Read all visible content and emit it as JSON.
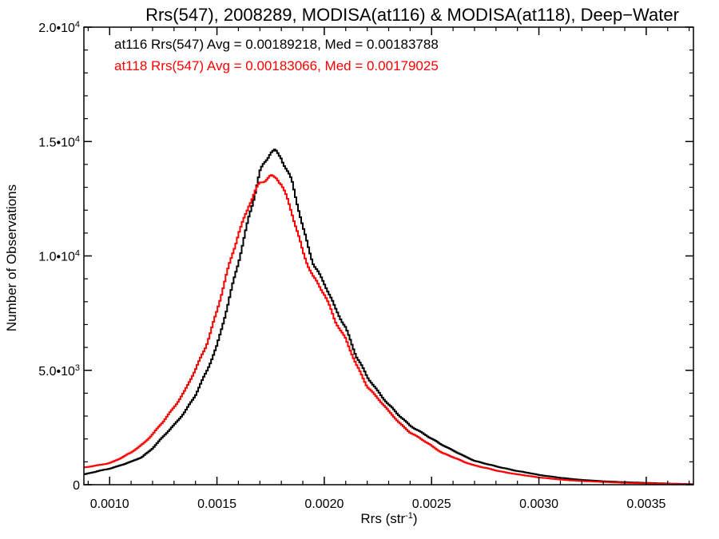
{
  "chart_data": {
    "type": "line",
    "title": "Rrs(547), 2008289, MODISA(at116) & MODISA(at118), Deep−Water",
    "xlabel": "Rrs (str",
    "xlabel_sup": "-1",
    "xlabel_end": ")",
    "ylabel": "Number of Observations",
    "xlim": [
      0.00088,
      0.00372
    ],
    "ylim": [
      0,
      20000
    ],
    "x_ticks": [
      0.001,
      0.0015,
      0.002,
      0.0025,
      0.003,
      0.0035
    ],
    "x_tick_labels": [
      "0.0010",
      "0.0015",
      "0.0020",
      "0.0025",
      "0.0030",
      "0.0035"
    ],
    "y_ticks": [
      0,
      5000,
      10000,
      15000,
      20000
    ],
    "y_tick_labels": [
      {
        "base": "0",
        "exp": ""
      },
      {
        "base": "5.0•",
        "base10": "10",
        "exp": "3"
      },
      {
        "base": "1.0•",
        "base10": "10",
        "exp": "4"
      },
      {
        "base": "1.5•",
        "base10": "10",
        "exp": "4"
      },
      {
        "base": "2.0•",
        "base10": "10",
        "exp": "4"
      }
    ],
    "legend_placement": "top-left",
    "series": [
      {
        "name": "at116",
        "color": "#000000",
        "annotation": "at116 Rrs(547) Avg = 0.00189218, Med = 0.00183788",
        "x": [
          0.00088,
          0.00095,
          0.001,
          0.00105,
          0.0011,
          0.00115,
          0.0012,
          0.00125,
          0.0013,
          0.00135,
          0.0014,
          0.00145,
          0.0015,
          0.00155,
          0.0016,
          0.00165,
          0.0017,
          0.00175,
          0.00177,
          0.0018,
          0.00185,
          0.0019,
          0.00195,
          0.002,
          0.00205,
          0.0021,
          0.00215,
          0.0022,
          0.00225,
          0.0023,
          0.00235,
          0.0024,
          0.00245,
          0.0025,
          0.00255,
          0.0026,
          0.00265,
          0.0027,
          0.0028,
          0.0029,
          0.003,
          0.0031,
          0.0032,
          0.0033,
          0.0034,
          0.0035,
          0.0036,
          0.00372
        ],
        "y": [
          450,
          600,
          700,
          850,
          1000,
          1200,
          1600,
          2100,
          2600,
          3200,
          3900,
          4900,
          6100,
          7800,
          9700,
          11800,
          13600,
          14500,
          14600,
          14400,
          13200,
          11200,
          9700,
          8800,
          7700,
          6900,
          5600,
          4700,
          4100,
          3500,
          3000,
          2600,
          2300,
          2000,
          1750,
          1500,
          1250,
          1050,
          800,
          600,
          430,
          300,
          210,
          150,
          110,
          80,
          50,
          20
        ]
      },
      {
        "name": "at118",
        "color": "#ff0000",
        "annotation": "at118 Rrs(547) Avg = 0.00183066, Med = 0.00179025",
        "x": [
          0.00088,
          0.00095,
          0.001,
          0.00105,
          0.0011,
          0.00115,
          0.0012,
          0.00125,
          0.0013,
          0.00135,
          0.0014,
          0.00145,
          0.0015,
          0.00155,
          0.0016,
          0.00165,
          0.0017,
          0.00175,
          0.00178,
          0.0018,
          0.00185,
          0.0019,
          0.00195,
          0.002,
          0.00205,
          0.0021,
          0.00215,
          0.0022,
          0.00225,
          0.0023,
          0.00235,
          0.0024,
          0.00245,
          0.0025,
          0.00255,
          0.0026,
          0.00265,
          0.0027,
          0.0028,
          0.0029,
          0.003,
          0.0031,
          0.0032,
          0.0033,
          0.0034,
          0.0035,
          0.0036,
          0.00372
        ],
        "y": [
          750,
          850,
          950,
          1150,
          1400,
          1750,
          2200,
          2750,
          3400,
          4100,
          5000,
          6100,
          7600,
          9300,
          11000,
          12300,
          13100,
          13500,
          13500,
          13200,
          11800,
          10200,
          9100,
          8300,
          7200,
          6400,
          5200,
          4300,
          3800,
          3200,
          2700,
          2300,
          2000,
          1700,
          1400,
          1200,
          1000,
          850,
          620,
          450,
          320,
          220,
          160,
          120,
          80,
          60,
          40,
          20
        ]
      }
    ]
  }
}
